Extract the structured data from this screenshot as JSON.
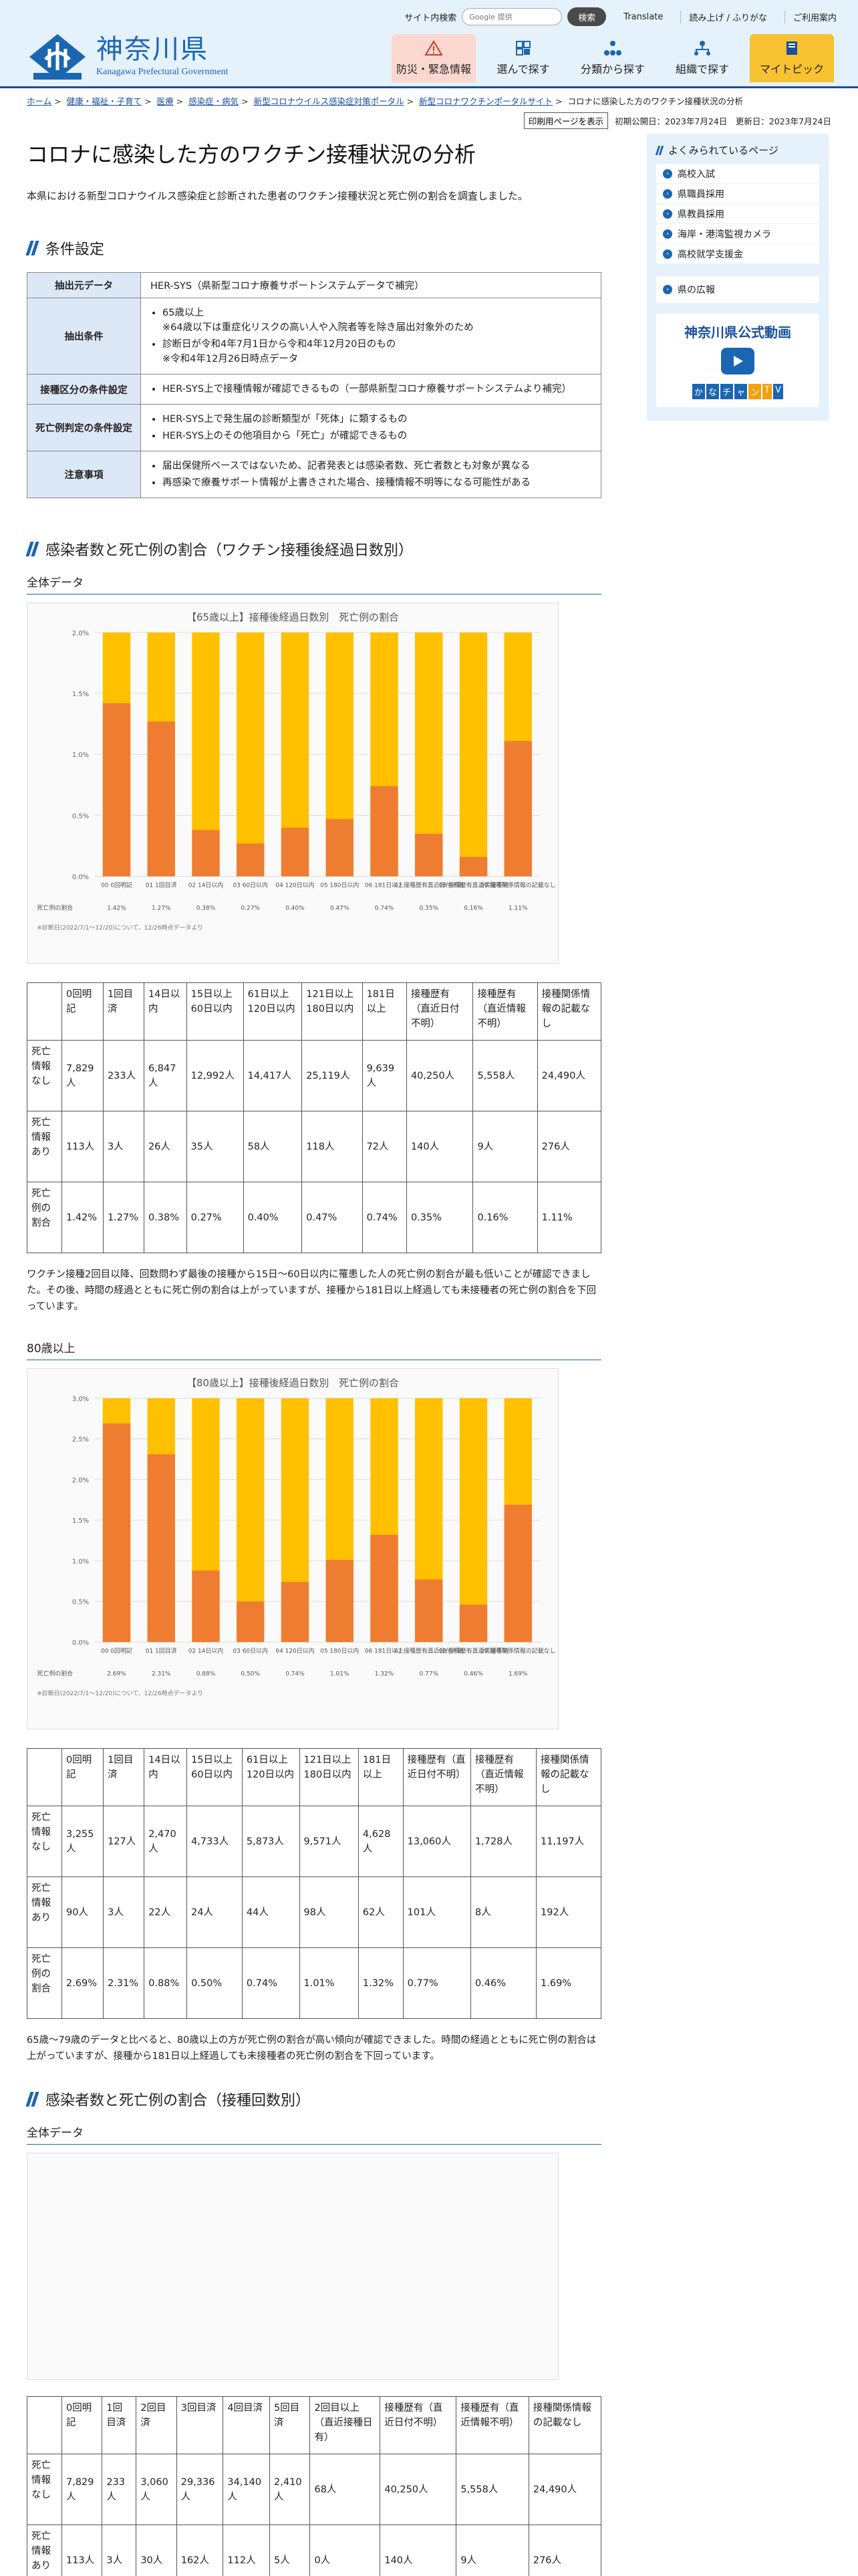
{
  "topbar": {
    "search_label": "サイト内検索",
    "search_placeholder": "Google 提供",
    "search_button": "検索",
    "links": [
      "Translate",
      "読み上げ / ふりがな",
      "ご利用案内"
    ]
  },
  "header": {
    "logo_jp": "神奈川県",
    "logo_en": "Kanagawa Prefectural Government",
    "nav": [
      "防災・緊急情報",
      "選んで探す",
      "分類から探す",
      "組織で探す",
      "マイトピック"
    ]
  },
  "breadcrumb": [
    "ホーム",
    "健康・福祉・子育て",
    "医療",
    "感染症・病気",
    "新型コロナウイルス感染症対策ポータル",
    "新型コロナワクチンポータルサイト"
  ],
  "breadcrumb_current": "コロナに感染した方のワクチン接種状況の分析",
  "print_button": "印刷用ページを表示",
  "dates": "初期公開日：2023年7月24日　更新日：2023年7月24日",
  "title": "コロナに感染した方のワクチン接種状況の分析",
  "intro": "本県における新型コロナウイルス感染症と診断された患者のワクチン接種状況と死亡例の割合を調査しました。",
  "section1": {
    "heading": "条件設定",
    "rows": [
      {
        "th": "抽出元データ",
        "items": [
          "HER-SYS（県新型コロナ療養サポートシステムデータで補完）"
        ],
        "plain": true
      },
      {
        "th": "抽出条件",
        "items": [
          "65歳以上",
          "診断日が令和4年7月1日から令和4年12月20日のもの"
        ],
        "notes": [
          "※64歳以下は重症化リスクの高い人や入院者等を除き届出対象外のため",
          "※令和4年12月26日時点データ"
        ]
      },
      {
        "th": "接種区分の条件設定",
        "items": [
          "HER-SYS上で接種情報が確認できるもの（一部県新型コロナ療養サポートシステムより補完）"
        ]
      },
      {
        "th": "死亡例判定の条件設定",
        "items": [
          "HER-SYS上で発生届の診断類型が「死体」に類するもの",
          "HER-SYS上のその他項目から「死亡」が確認できるもの"
        ]
      },
      {
        "th": "注意事項",
        "items": [
          "届出保健所ベースではないため、記者発表とは感染者数、死亡者数とも対象が異なる",
          "再感染で療養サポート情報が上書きされた場合、接種情報不明等になる可能性がある"
        ]
      }
    ]
  },
  "section2": {
    "heading": "感染者数と死亡例の割合（ワクチン接種後経過日数別）",
    "all": {
      "sub": "全体データ",
      "columns": [
        "0回明記",
        "1回目済",
        "14日以内",
        "15日以上60日以内",
        "61日以上120日以内",
        "121日以上180日以内",
        "181日以上",
        "接種歴有（直近日付不明）",
        "接種歴有（直近情報不明）",
        "接種関係情報の記載なし"
      ],
      "rows": [
        {
          "label": "死亡情報なし",
          "values": [
            "7,829人",
            "233人",
            "6,847人",
            "12,992人",
            "14,417人",
            "25,119人",
            "9,639人",
            "40,250人",
            "5,558人",
            "24,490人"
          ]
        },
        {
          "label": "死亡情報あり",
          "values": [
            "113人",
            "3人",
            "26人",
            "35人",
            "58人",
            "118人",
            "72人",
            "140人",
            "9人",
            "276人"
          ]
        },
        {
          "label": "死亡例の割合",
          "values": [
            "1.42%",
            "1.27%",
            "0.38%",
            "0.27%",
            "0.40%",
            "0.47%",
            "0.74%",
            "0.35%",
            "0.16%",
            "1.11%"
          ]
        }
      ],
      "para": "ワクチン接種2回目以降、回数問わず最後の接種から15日～60日以内に罹患した人の死亡例の割合が最も低いことが確認できました。その後、時間の経過とともに死亡例の割合は上がっていますが、接種から181日以上経過しても未接種者の死亡例の割合を下回っています。"
    },
    "over80": {
      "sub": "80歳以上",
      "columns": [
        "0回明記",
        "1回目済",
        "14日以内",
        "15日以上60日以内",
        "61日以上120日以内",
        "121日以上180日以内",
        "181日以上",
        "接種歴有（直近日付不明）",
        "接種歴有（直近情報不明）",
        "接種関係情報の記載なし"
      ],
      "rows": [
        {
          "label": "死亡情報なし",
          "values": [
            "3,255人",
            "127人",
            "2,470人",
            "4,733人",
            "5,873人",
            "9,571人",
            "4,628人",
            "13,060人",
            "1,728人",
            "11,197人"
          ]
        },
        {
          "label": "死亡情報あり",
          "values": [
            "90人",
            "3人",
            "22人",
            "24人",
            "44人",
            "98人",
            "62人",
            "101人",
            "8人",
            "192人"
          ]
        },
        {
          "label": "死亡例の割合",
          "values": [
            "2.69%",
            "2.31%",
            "0.88%",
            "0.50%",
            "0.74%",
            "1.01%",
            "1.32%",
            "0.77%",
            "0.46%",
            "1.69%"
          ]
        }
      ],
      "para": "65歳～79歳のデータと比べると、80歳以上の方が死亡例の割合が高い傾向が確認できました。時間の経過とともに死亡例の割合は上がっていますが、接種から181日以上経過しても未接種者の死亡例の割合を下回っています。"
    }
  },
  "section3": {
    "heading": "感染者数と死亡例の割合（接種回数別）",
    "sub": "全体データ",
    "columns": [
      "0回明記",
      "1回目済",
      "2回目済",
      "3回目済",
      "4回目済",
      "5回目済",
      "2回目以上（直近接種日有）",
      "接種歴有（直近日付不明）",
      "接種歴有（直近情報不明）",
      "接種関係情報の記載なし"
    ],
    "rows": [
      {
        "label": "死亡情報なし",
        "values": [
          "7,829人",
          "233人",
          "3,060人",
          "29,336人",
          "34,140人",
          "2,410人",
          "68人",
          "40,250人",
          "5,558人",
          "24,490人"
        ]
      },
      {
        "label": "死亡情報あり",
        "values": [
          "113人",
          "3人",
          "30人",
          "162人",
          "112人",
          "5人",
          "0人",
          "140人",
          "9人",
          "276人"
        ]
      },
      {
        "label": "死亡例の割合",
        "values": [
          "",
          "",
          "",
          "",
          "",
          "",
          "",
          "",
          "",
          ""
        ]
      }
    ]
  },
  "chart_data": [
    {
      "type": "bar",
      "title": "【65歳以上】接種後経過日数別　死亡例の割合",
      "categories": [
        "00 0回明記",
        "01 1回目済",
        "02 14日以内",
        "03 60日以内",
        "04 120日以内",
        "05 180日以内",
        "06 181日以上",
        "07 接種歴有直近日付不明",
        "08 接種歴有直近情報不明",
        "09 接種関係情報の記載なし"
      ],
      "series": [
        {
          "name": "死亡例の割合",
          "values": [
            1.42,
            1.27,
            0.38,
            0.27,
            0.4,
            0.47,
            0.74,
            0.35,
            0.16,
            1.11
          ]
        }
      ],
      "ylim": [
        0,
        2.0
      ],
      "yticks": [
        "0.0%",
        "0.5%",
        "1.0%",
        "1.5%",
        "2.0%"
      ],
      "footnote": "※診断日(2022/7/1～12/20)について、12/26時点データより"
    },
    {
      "type": "bar",
      "title": "【80歳以上】接種後経過日数別　死亡例の割合",
      "categories": [
        "00 0回明記",
        "01 1回目済",
        "02 14日以内",
        "03 60日以内",
        "04 120日以内",
        "05 180日以内",
        "06 181日以上",
        "07 接種歴有直近日付不明",
        "08 接種歴有直近情報不明",
        "09 接種関係情報の記載なし"
      ],
      "series": [
        {
          "name": "死亡例の割合",
          "values": [
            2.69,
            2.31,
            0.88,
            0.5,
            0.74,
            1.01,
            1.32,
            0.77,
            0.46,
            1.69
          ]
        }
      ],
      "ylim": [
        0,
        3.0
      ],
      "yticks": [
        "0.0%",
        "0.5%",
        "1.0%",
        "1.5%",
        "2.0%",
        "2.5%",
        "3.0%"
      ],
      "footnote": "※診断日(2022/7/1～12/20)について、12/26時点データより"
    }
  ],
  "sidebar": {
    "faq_title": "よくみられているページ",
    "faq": [
      "高校入試",
      "県職員採用",
      "県教員採用",
      "海岸・港湾監視カメラ",
      "高校就学支援金"
    ],
    "kouhou": "県の広報",
    "video_title": "神奈川県公式動画",
    "kana_tv": [
      "か",
      "な",
      "チ",
      "ャ",
      "ン",
      "T",
      "V"
    ]
  },
  "colors": {
    "accent": "#1a66b3",
    "bar_orange": "#ef7d31",
    "bar_yellow": "#ffc000"
  }
}
